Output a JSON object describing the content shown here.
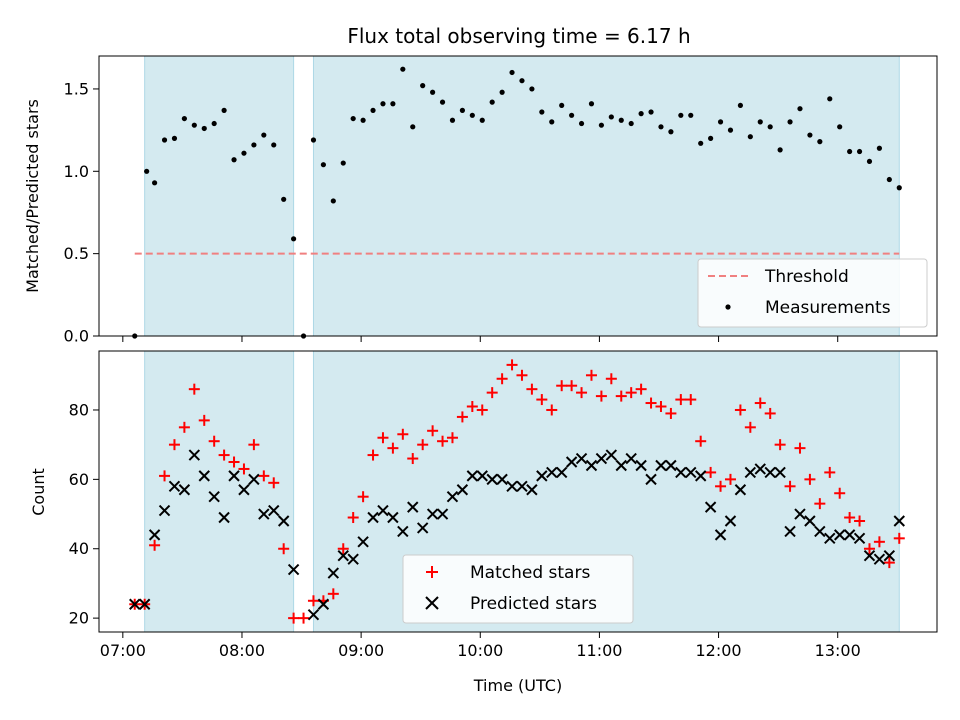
{
  "figure": {
    "title": "Flux total observing time = 6.17 h",
    "xlabel": "Time (UTC)"
  },
  "colors": {
    "shading": "#d4eaf0",
    "shading_edge": "#add8e6",
    "threshold": "#f08080",
    "measurements": "#000000",
    "matched": "#ff0000",
    "predicted": "#000000"
  },
  "chart_data": [
    {
      "type": "scatter",
      "panel": "top",
      "ylabel": "Matched/Predicted stars",
      "xlim": [
        "06:48",
        "13:50"
      ],
      "ylim": [
        0,
        1.7
      ],
      "x_ticks": [
        "07:00",
        "08:00",
        "09:00",
        "10:00",
        "11:00",
        "12:00",
        "13:00"
      ],
      "y_ticks": [
        "0.0",
        "0.5",
        "1.0",
        "1.5"
      ],
      "y_tick_values": [
        0,
        0.5,
        1.0,
        1.5
      ],
      "shaded_spans": [
        [
          "07:11",
          "08:26"
        ],
        [
          "08:36",
          "13:31"
        ]
      ],
      "legend_position": "lower right",
      "threshold": {
        "name": "Threshold",
        "y": 0.5,
        "x_range": [
          "07:06",
          "13:31"
        ]
      },
      "series": [
        {
          "name": "Measurements",
          "x": [
            "07:06",
            "07:12",
            "07:16",
            "07:21",
            "07:26",
            "07:31",
            "07:36",
            "07:41",
            "07:46",
            "07:51",
            "07:56",
            "08:01",
            "08:06",
            "08:11",
            "08:16",
            "08:21",
            "08:26",
            "08:31",
            "08:36",
            "08:41",
            "08:46",
            "08:51",
            "08:56",
            "09:01",
            "09:06",
            "09:11",
            "09:16",
            "09:21",
            "09:26",
            "09:31",
            "09:36",
            "09:41",
            "09:46",
            "09:51",
            "09:56",
            "10:01",
            "10:06",
            "10:11",
            "10:16",
            "10:21",
            "10:26",
            "10:31",
            "10:36",
            "10:41",
            "10:46",
            "10:51",
            "10:56",
            "11:01",
            "11:06",
            "11:11",
            "11:16",
            "11:21",
            "11:26",
            "11:31",
            "11:36",
            "11:41",
            "11:46",
            "11:51",
            "11:56",
            "12:01",
            "12:06",
            "12:11",
            "12:16",
            "12:21",
            "12:26",
            "12:31",
            "12:36",
            "12:41",
            "12:46",
            "12:51",
            "12:56",
            "13:01",
            "13:06",
            "13:11",
            "13:16",
            "13:21",
            "13:26",
            "13:31"
          ],
          "y": [
            0.0,
            1.0,
            0.93,
            1.19,
            1.2,
            1.32,
            1.28,
            1.26,
            1.29,
            1.37,
            1.07,
            1.11,
            1.16,
            1.22,
            1.16,
            0.83,
            0.59,
            0.0,
            1.19,
            1.04,
            0.82,
            1.05,
            1.32,
            1.31,
            1.37,
            1.41,
            1.41,
            1.62,
            1.27,
            1.52,
            1.48,
            1.42,
            1.31,
            1.37,
            1.34,
            1.31,
            1.42,
            1.48,
            1.6,
            1.55,
            1.5,
            1.36,
            1.3,
            1.4,
            1.34,
            1.29,
            1.41,
            1.28,
            1.33,
            1.31,
            1.29,
            1.35,
            1.36,
            1.27,
            1.24,
            1.34,
            1.34,
            1.17,
            1.2,
            1.3,
            1.25,
            1.4,
            1.21,
            1.3,
            1.27,
            1.13,
            1.3,
            1.38,
            1.22,
            1.18,
            1.44,
            1.27,
            1.12,
            1.12,
            1.06,
            1.14,
            0.95,
            0.9
          ]
        }
      ]
    },
    {
      "type": "scatter",
      "panel": "bottom",
      "ylabel": "Count",
      "xlim": [
        "06:48",
        "13:50"
      ],
      "ylim": [
        16,
        97
      ],
      "x_ticks": [
        "07:00",
        "08:00",
        "09:00",
        "10:00",
        "11:00",
        "12:00",
        "13:00"
      ],
      "y_ticks": [
        "20",
        "40",
        "60",
        "80"
      ],
      "y_tick_values": [
        20,
        40,
        60,
        80
      ],
      "shaded_spans": [
        [
          "07:11",
          "08:26"
        ],
        [
          "08:36",
          "13:31"
        ]
      ],
      "legend_position": "lower center",
      "series": [
        {
          "name": "Matched stars",
          "marker": "plus",
          "x": [
            "07:06",
            "07:11",
            "07:16",
            "07:21",
            "07:26",
            "07:31",
            "07:36",
            "07:41",
            "07:46",
            "07:51",
            "07:56",
            "08:01",
            "08:06",
            "08:11",
            "08:16",
            "08:21",
            "08:26",
            "08:31",
            "08:36",
            "08:41",
            "08:46",
            "08:51",
            "08:56",
            "09:01",
            "09:06",
            "09:11",
            "09:16",
            "09:21",
            "09:26",
            "09:31",
            "09:36",
            "09:41",
            "09:46",
            "09:51",
            "09:56",
            "10:01",
            "10:06",
            "10:11",
            "10:16",
            "10:21",
            "10:26",
            "10:31",
            "10:36",
            "10:41",
            "10:46",
            "10:51",
            "10:56",
            "11:01",
            "11:06",
            "11:11",
            "11:16",
            "11:21",
            "11:26",
            "11:31",
            "11:36",
            "11:41",
            "11:46",
            "11:51",
            "11:56",
            "12:01",
            "12:06",
            "12:11",
            "12:16",
            "12:21",
            "12:26",
            "12:31",
            "12:36",
            "12:41",
            "12:46",
            "12:51",
            "12:56",
            "13:01",
            "13:06",
            "13:11",
            "13:16",
            "13:21",
            "13:26",
            "13:31"
          ],
          "y": [
            24,
            24,
            41,
            61,
            70,
            75,
            86,
            77,
            71,
            67,
            65,
            63,
            70,
            61,
            59,
            40,
            20,
            20,
            25,
            25,
            27,
            40,
            49,
            55,
            67,
            72,
            69,
            73,
            66,
            70,
            74,
            71,
            72,
            78,
            81,
            80,
            85,
            89,
            93,
            90,
            86,
            83,
            80,
            87,
            87,
            85,
            90,
            84,
            89,
            84,
            85,
            86,
            82,
            81,
            79,
            83,
            83,
            71,
            62,
            58,
            60,
            80,
            75,
            82,
            79,
            70,
            58,
            69,
            60,
            53,
            62,
            56,
            49,
            48,
            40,
            42,
            36,
            43
          ]
        },
        {
          "name": "Predicted stars",
          "marker": "x",
          "x": [
            "07:06",
            "07:11",
            "07:16",
            "07:21",
            "07:26",
            "07:31",
            "07:36",
            "07:41",
            "07:46",
            "07:51",
            "07:56",
            "08:01",
            "08:06",
            "08:11",
            "08:16",
            "08:21",
            "08:26",
            "08:36",
            "08:41",
            "08:46",
            "08:51",
            "08:56",
            "09:01",
            "09:06",
            "09:11",
            "09:16",
            "09:21",
            "09:26",
            "09:31",
            "09:36",
            "09:41",
            "09:46",
            "09:51",
            "09:56",
            "10:01",
            "10:06",
            "10:11",
            "10:16",
            "10:21",
            "10:26",
            "10:31",
            "10:36",
            "10:41",
            "10:46",
            "10:51",
            "10:56",
            "11:01",
            "11:06",
            "11:11",
            "11:16",
            "11:21",
            "11:26",
            "11:31",
            "11:36",
            "11:41",
            "11:46",
            "11:51",
            "11:56",
            "12:01",
            "12:06",
            "12:11",
            "12:16",
            "12:21",
            "12:26",
            "12:31",
            "12:36",
            "12:41",
            "12:46",
            "12:51",
            "12:56",
            "13:01",
            "13:06",
            "13:11",
            "13:16",
            "13:21",
            "13:26",
            "13:31"
          ],
          "y": [
            24,
            24,
            44,
            51,
            58,
            57,
            67,
            61,
            55,
            49,
            61,
            57,
            60,
            50,
            51,
            48,
            34,
            21,
            24,
            33,
            38,
            37,
            42,
            49,
            51,
            49,
            45,
            52,
            46,
            50,
            50,
            55,
            57,
            61,
            61,
            60,
            60,
            58,
            58,
            57,
            61,
            62,
            62,
            65,
            66,
            64,
            66,
            67,
            64,
            66,
            64,
            60,
            64,
            64,
            62,
            62,
            61,
            52,
            44,
            48,
            57,
            62,
            63,
            62,
            62,
            45,
            50,
            48,
            45,
            43,
            44,
            44,
            43,
            38,
            37,
            38,
            48
          ]
        }
      ]
    }
  ]
}
